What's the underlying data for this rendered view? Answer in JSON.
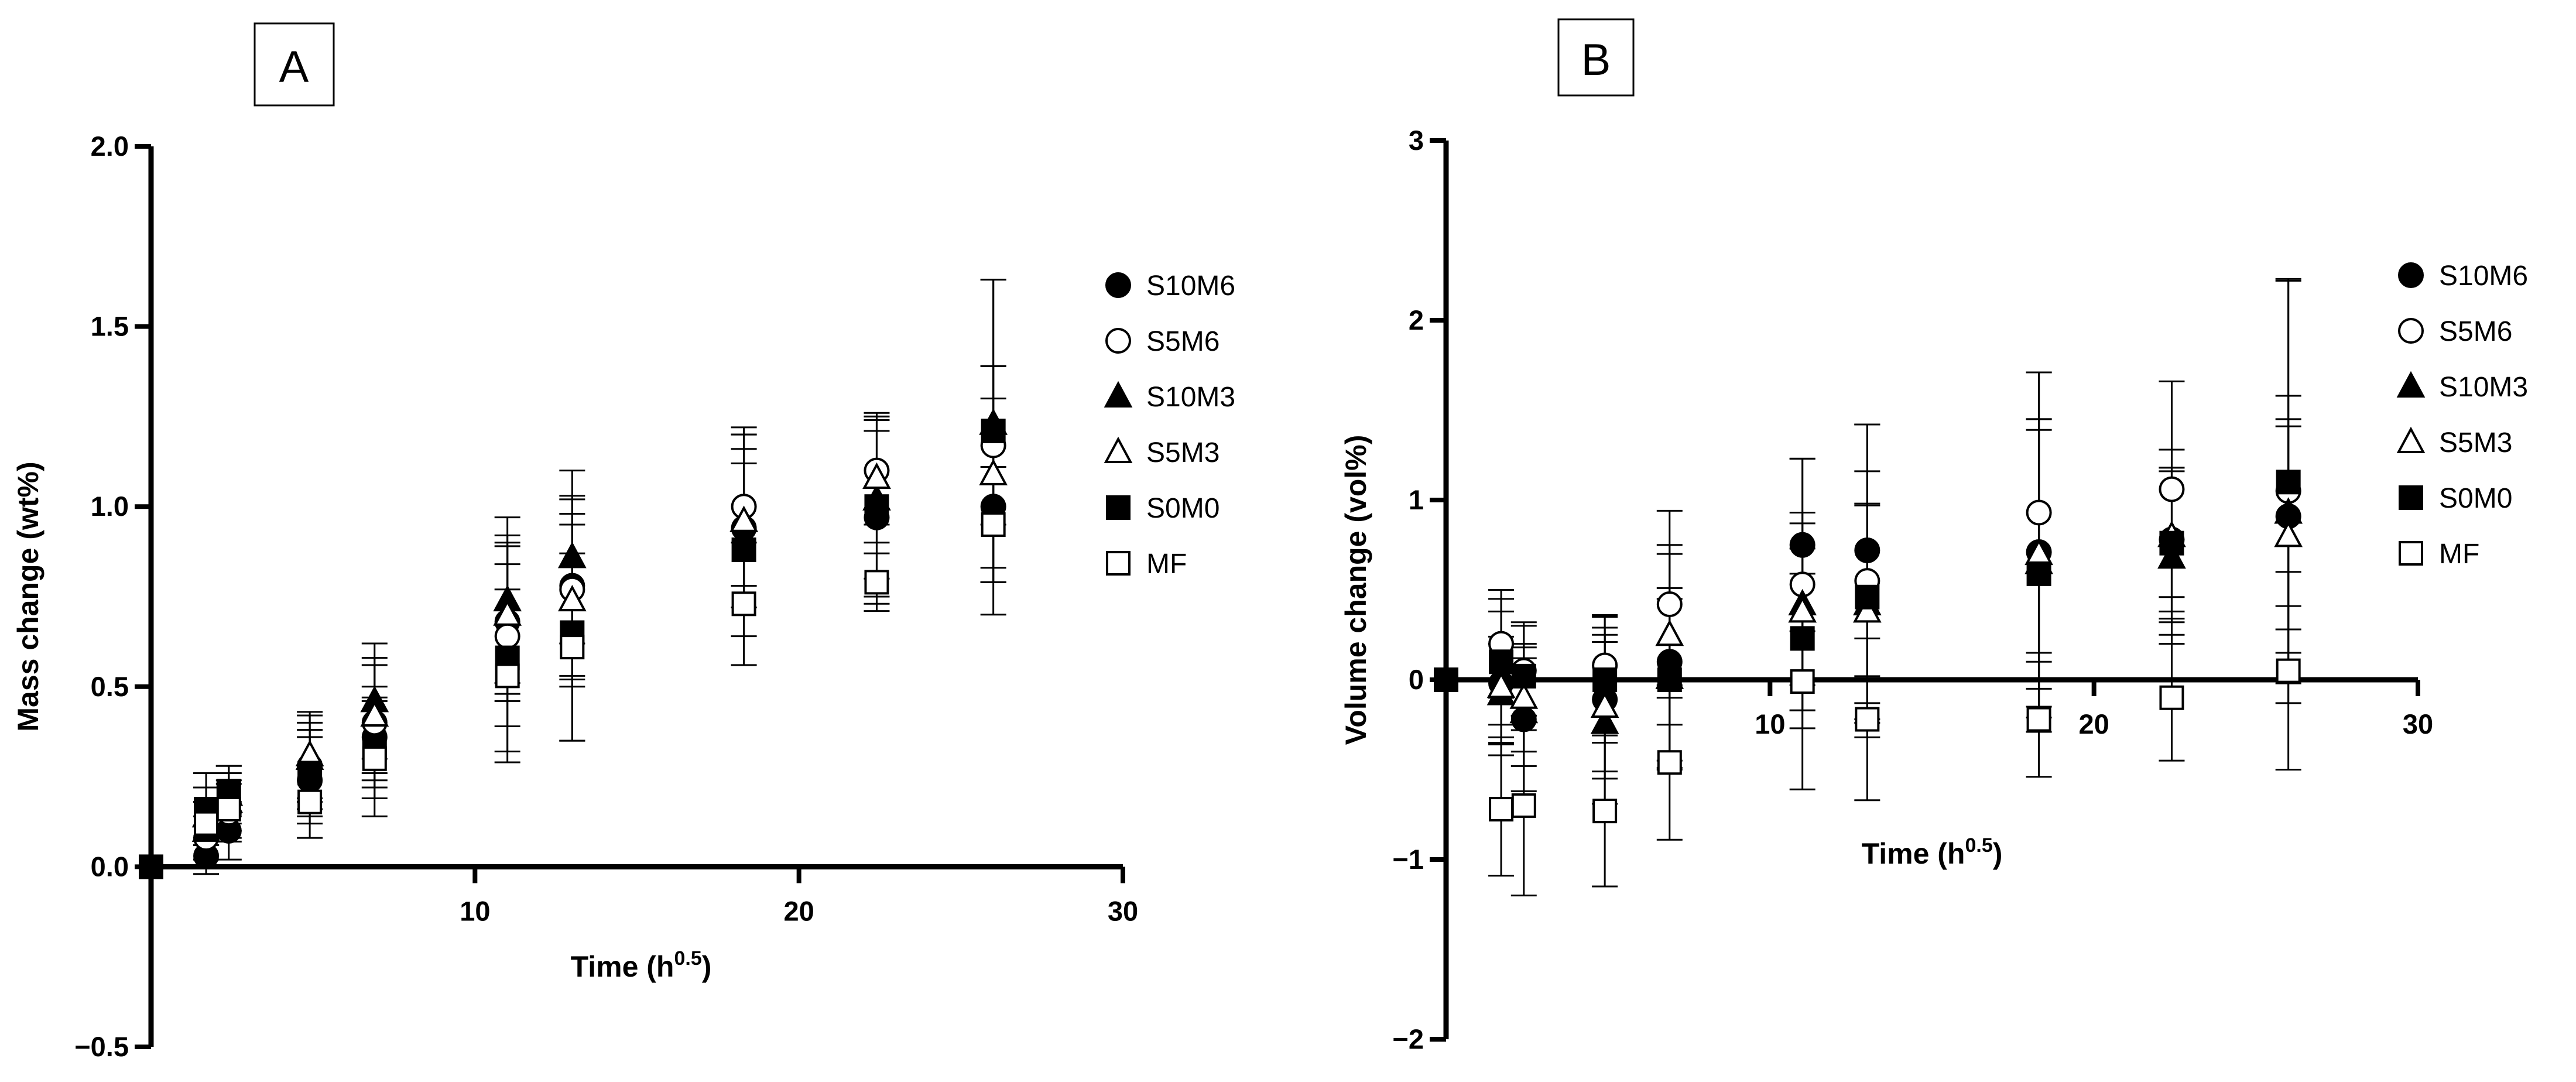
{
  "figure": {
    "panels": [
      "A",
      "B"
    ]
  },
  "styles": {
    "S10M6": {
      "shape": "circle",
      "filled": true
    },
    "S5M6": {
      "shape": "circle",
      "filled": false
    },
    "S10M3": {
      "shape": "triangle",
      "filled": true
    },
    "S5M3": {
      "shape": "triangle",
      "filled": false
    },
    "S0M0": {
      "shape": "square",
      "filled": true
    },
    "MF": {
      "shape": "square",
      "filled": false
    }
  },
  "colors": {
    "ink": "#000000",
    "background": "#ffffff"
  },
  "chart_data": [
    {
      "type": "scatter",
      "panel": "A",
      "title": "",
      "xlabel": "Time (h",
      "xlabel_sup": "0.5",
      "xlabel_close": ")",
      "ylabel": "Mass change (wt%)",
      "xlim": [
        0,
        30
      ],
      "ylim": [
        -0.5,
        2.0
      ],
      "xticks": [
        10,
        20,
        30
      ],
      "xtick_labels": [
        "10",
        "20",
        "30"
      ],
      "yticks": [
        -0.5,
        0.0,
        0.5,
        1.0,
        1.5,
        2.0
      ],
      "ytick_labels": [
        "−0.5",
        "0.0",
        "0.5",
        "1.0",
        "1.5",
        "2.0"
      ],
      "legend": [
        "S10M6",
        "S5M6",
        "S10M3",
        "S5M3",
        "S0M0",
        "MF"
      ],
      "x": [
        0,
        1.7,
        2.4,
        4.9,
        6.9,
        11.0,
        13.0,
        18.3,
        22.4,
        26.0
      ],
      "series": [
        {
          "name": "S10M6",
          "y": [
            0,
            0.03,
            0.1,
            0.24,
            0.36,
            0.68,
            0.78,
            0.94,
            0.97,
            1.0
          ],
          "err": [
            0,
            0.05,
            0.08,
            0.12,
            0.14,
            0.22,
            0.25,
            0.22,
            0.24,
            0.3
          ]
        },
        {
          "name": "S5M6",
          "y": [
            0,
            0.08,
            0.15,
            0.28,
            0.4,
            0.64,
            0.77,
            1.0,
            1.1,
            1.17
          ],
          "err": [
            0,
            0.06,
            0.08,
            0.12,
            0.16,
            0.25,
            0.25,
            0.22,
            0.15,
            0.22
          ]
        },
        {
          "name": "S10M3",
          "y": [
            0,
            0.1,
            0.18,
            0.3,
            0.46,
            0.74,
            0.86,
            0.96,
            1.02,
            1.23
          ],
          "err": [
            0,
            0.08,
            0.08,
            0.12,
            0.16,
            0.23,
            0.24,
            0.24,
            0.22,
            0.4
          ]
        },
        {
          "name": "S5M3",
          "y": [
            0,
            0.14,
            0.2,
            0.31,
            0.42,
            0.7,
            0.74,
            0.96,
            1.08,
            1.09
          ],
          "err": [
            0,
            0.08,
            0.08,
            0.12,
            0.16,
            0.22,
            0.24,
            0.24,
            0.18,
            0.3
          ]
        },
        {
          "name": "S0M0",
          "y": [
            0,
            0.16,
            0.21,
            0.26,
            0.33,
            0.58,
            0.65,
            0.88,
            1.0,
            1.21
          ],
          "err": [
            0,
            0.1,
            0.07,
            0.12,
            0.14,
            0.26,
            0.3,
            0.24,
            0.25,
            0.42
          ]
        },
        {
          "name": "MF",
          "y": [
            0,
            0.12,
            0.16,
            0.18,
            0.3,
            0.53,
            0.61,
            0.73,
            0.79,
            0.95
          ],
          "err": [
            0,
            0.06,
            0.08,
            0.1,
            0.16,
            0.24,
            0.26,
            0.17,
            0.08,
            0.16
          ]
        }
      ]
    },
    {
      "type": "scatter",
      "panel": "B",
      "title": "",
      "xlabel": "Time (h",
      "xlabel_sup": "0.5",
      "xlabel_close": ")",
      "ylabel": "Volume change (vol%)",
      "xlim": [
        0,
        30
      ],
      "ylim": [
        -2,
        3
      ],
      "xticks": [
        10,
        20,
        30
      ],
      "xtick_labels": [
        "10",
        "20",
        "30"
      ],
      "yticks": [
        -2,
        -1,
        0,
        1,
        2,
        3
      ],
      "ytick_labels": [
        "−2",
        "−1",
        "0",
        "1",
        "2",
        "3"
      ],
      "legend": [
        "S10M6",
        "S5M6",
        "S10M3",
        "S5M3",
        "S0M0",
        "MF"
      ],
      "x": [
        0,
        1.7,
        2.4,
        4.9,
        6.9,
        11.0,
        13.0,
        18.3,
        22.4,
        26.0
      ],
      "series": [
        {
          "name": "S10M6",
          "y": [
            0,
            -0.02,
            -0.22,
            -0.11,
            0.1,
            0.75,
            0.72,
            0.71,
            0.78,
            0.91
          ],
          "err": [
            0,
            0.4,
            0.4,
            0.4,
            0.6,
            0.48,
            0.7,
            1.0,
            0.4,
            0.5
          ]
        },
        {
          "name": "S5M6",
          "y": [
            0,
            0.2,
            0.05,
            0.08,
            0.42,
            0.53,
            0.55,
            0.93,
            1.06,
            1.05
          ],
          "err": [
            0,
            0.3,
            0.25,
            0.28,
            0.52,
            0.7,
            0.87,
            0.78,
            0.6,
            1.18
          ]
        },
        {
          "name": "S10M3",
          "y": [
            0,
            -0.08,
            -0.18,
            -0.24,
            0.01,
            0.42,
            0.42,
            0.65,
            0.68,
            0.93
          ],
          "err": [
            0,
            0.28,
            0.3,
            0.45,
            0.5,
            0.45,
            0.55,
            0.8,
            0.48,
            0.65
          ]
        },
        {
          "name": "S5M3",
          "y": [
            0,
            -0.04,
            -0.1,
            -0.15,
            0.25,
            0.38,
            0.38,
            0.7,
            0.8,
            0.8
          ],
          "err": [
            0,
            0.28,
            0.3,
            0.4,
            0.5,
            0.55,
            0.6,
            0.75,
            0.48,
            0.65
          ]
        },
        {
          "name": "S0M0",
          "y": [
            0,
            0.1,
            0.02,
            0.0,
            0.0,
            0.23,
            0.46,
            0.59,
            0.76,
            1.1
          ],
          "err": [
            0,
            0.35,
            0.3,
            0.35,
            0.45,
            0.5,
            0.7,
            0.8,
            0.42,
            1.12
          ]
        },
        {
          "name": "MF",
          "y": [
            0,
            -0.72,
            -0.7,
            -0.73,
            -0.46,
            -0.01,
            -0.22,
            -0.22,
            -0.1,
            0.05
          ],
          "err": [
            0,
            0.37,
            0.5,
            0.42,
            0.43,
            0.6,
            0.45,
            0.32,
            0.35,
            0.55
          ]
        }
      ]
    }
  ]
}
